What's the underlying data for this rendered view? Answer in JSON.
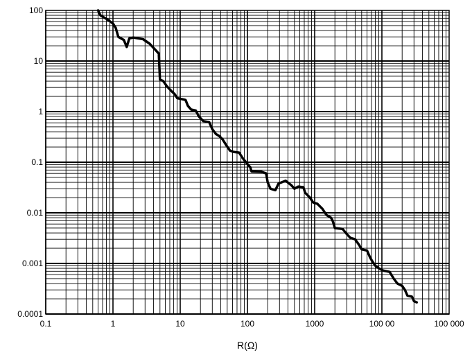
{
  "chart_data": {
    "type": "line",
    "title": "",
    "xlabel": "R(Ω)",
    "ylabel": "",
    "x_scale": "log",
    "y_scale": "log",
    "xlim": [
      0.1,
      100000
    ],
    "ylim": [
      0.0001,
      100
    ],
    "grid": true,
    "x_ticks": [
      {
        "value": 0.1,
        "label": "0.1"
      },
      {
        "value": 1,
        "label": "1"
      },
      {
        "value": 10,
        "label": "10"
      },
      {
        "value": 100,
        "label": "100"
      },
      {
        "value": 1000,
        "label": "1000"
      },
      {
        "value": 10000,
        "label": "100 00"
      },
      {
        "value": 100000,
        "label": "100 000"
      }
    ],
    "y_ticks": [
      {
        "value": 100,
        "label": "100"
      },
      {
        "value": 10,
        "label": "10"
      },
      {
        "value": 1,
        "label": "1"
      },
      {
        "value": 0.1,
        "label": "0.1"
      },
      {
        "value": 0.01,
        "label": "0.01"
      },
      {
        "value": 0.001,
        "label": "0.001"
      },
      {
        "value": 0.0001,
        "label": "0.0001"
      }
    ],
    "series": [
      {
        "color": "#000000",
        "points": [
          [
            0.6,
            100
          ],
          [
            0.65,
            80
          ],
          [
            0.8,
            68
          ],
          [
            1.0,
            55
          ],
          [
            1.1,
            45
          ],
          [
            1.2,
            30
          ],
          [
            1.45,
            26
          ],
          [
            1.6,
            19
          ],
          [
            1.75,
            28
          ],
          [
            2.0,
            29
          ],
          [
            2.8,
            27
          ],
          [
            3.5,
            22
          ],
          [
            4.2,
            17
          ],
          [
            4.8,
            14
          ],
          [
            4.9,
            8
          ],
          [
            5.0,
            4.3
          ],
          [
            5.6,
            4.0
          ],
          [
            6.3,
            3.2
          ],
          [
            7.3,
            2.6
          ],
          [
            8.3,
            2.2
          ],
          [
            9.0,
            1.85
          ],
          [
            12.0,
            1.7
          ],
          [
            13.0,
            1.3
          ],
          [
            14.5,
            1.1
          ],
          [
            17.0,
            1.05
          ],
          [
            19.0,
            0.8
          ],
          [
            22.0,
            0.65
          ],
          [
            27.0,
            0.62
          ],
          [
            30.0,
            0.45
          ],
          [
            34.0,
            0.36
          ],
          [
            38.0,
            0.33
          ],
          [
            43.0,
            0.28
          ],
          [
            48.0,
            0.22
          ],
          [
            55.0,
            0.17
          ],
          [
            62.0,
            0.16
          ],
          [
            75.0,
            0.155
          ],
          [
            85.0,
            0.12
          ],
          [
            95.0,
            0.1
          ],
          [
            110.0,
            0.08
          ],
          [
            115.0,
            0.066
          ],
          [
            160.0,
            0.065
          ],
          [
            190.0,
            0.06
          ],
          [
            200.0,
            0.04
          ],
          [
            220.0,
            0.03
          ],
          [
            260.0,
            0.028
          ],
          [
            290.0,
            0.038
          ],
          [
            370.0,
            0.043
          ],
          [
            450.0,
            0.035
          ],
          [
            500.0,
            0.03
          ],
          [
            570.0,
            0.033
          ],
          [
            680.0,
            0.032
          ],
          [
            720.0,
            0.025
          ],
          [
            850.0,
            0.02
          ],
          [
            950.0,
            0.016
          ],
          [
            1100.0,
            0.015
          ],
          [
            1300.0,
            0.012
          ],
          [
            1500.0,
            0.009
          ],
          [
            1750.0,
            0.008
          ],
          [
            1850.0,
            0.007
          ],
          [
            2000.0,
            0.005
          ],
          [
            2600.0,
            0.0048
          ],
          [
            3000.0,
            0.0038
          ],
          [
            3400.0,
            0.0032
          ],
          [
            4000.0,
            0.003
          ],
          [
            4600.0,
            0.0023
          ],
          [
            5000.0,
            0.0019
          ],
          [
            6000.0,
            0.0018
          ],
          [
            6700.0,
            0.0013
          ],
          [
            7200.0,
            0.0011
          ],
          [
            8000.0,
            0.0009
          ],
          [
            9000.0,
            0.0008
          ],
          [
            10500.0,
            0.00072
          ],
          [
            13000.0,
            0.00068
          ],
          [
            15000.0,
            0.0005
          ],
          [
            17000.0,
            0.0004
          ],
          [
            20000.0,
            0.00036
          ],
          [
            22000.0,
            0.0003
          ],
          [
            24000.0,
            0.00023
          ],
          [
            28000.0,
            0.00022
          ],
          [
            30000.0,
            0.00018
          ],
          [
            33000.0,
            0.00017
          ]
        ]
      }
    ]
  }
}
